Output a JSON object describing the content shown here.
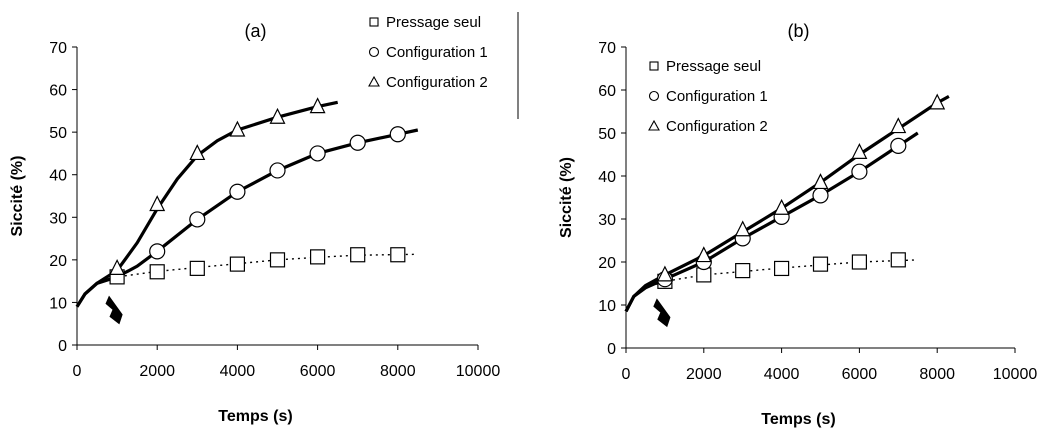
{
  "chart_data": [
    {
      "type": "scatter",
      "panel_label": "(a)",
      "xlabel": "Temps (s)",
      "ylabel": "Siccité (%)",
      "xlim": [
        0,
        10000
      ],
      "ylim": [
        0,
        70
      ],
      "x_ticks": [
        0,
        2000,
        4000,
        6000,
        8000,
        10000
      ],
      "y_ticks": [
        0,
        10,
        20,
        30,
        40,
        50,
        60,
        70
      ],
      "legend_position": "top-right",
      "series": [
        {
          "name": "Pressage seul",
          "marker": "square",
          "line": "dotted",
          "x": [
            1000,
            2000,
            3000,
            4000,
            5000,
            6000,
            7000,
            8000
          ],
          "y": [
            16,
            17.2,
            18,
            19,
            20,
            20.7,
            21.2,
            21.2
          ],
          "line_x": [
            0,
            200,
            500,
            1000,
            2000,
            3000,
            4000,
            5000,
            6000,
            7000,
            8500
          ],
          "line_y": [
            9,
            12,
            14.5,
            16,
            17.3,
            18.2,
            19.1,
            20,
            20.6,
            21.1,
            21.3
          ]
        },
        {
          "name": "Configuration 1",
          "marker": "circle",
          "line": "solid",
          "x": [
            2000,
            3000,
            4000,
            5000,
            6000,
            7000,
            8000
          ],
          "y": [
            22,
            29.5,
            36,
            41,
            45,
            47.5,
            49.5
          ],
          "line_x": [
            0,
            200,
            500,
            1000,
            1500,
            2000,
            3000,
            4000,
            5000,
            6000,
            7000,
            8000,
            8500
          ],
          "line_y": [
            9,
            12,
            14.5,
            16,
            18.5,
            22,
            29.5,
            36,
            41,
            45,
            47.5,
            49.5,
            50.5
          ]
        },
        {
          "name": "Configuration 2",
          "marker": "triangle",
          "line": "solid",
          "x": [
            1000,
            2000,
            3000,
            4000,
            5000,
            6000
          ],
          "y": [
            18,
            33,
            45,
            50.5,
            53.5,
            56
          ],
          "line_x": [
            0,
            200,
            500,
            1000,
            1500,
            2000,
            2500,
            3000,
            3500,
            4000,
            5000,
            6000,
            6500
          ],
          "line_y": [
            9,
            12,
            14.5,
            17.5,
            24,
            32,
            39,
            44.5,
            48,
            50.5,
            53.5,
            56,
            57
          ]
        }
      ]
    },
    {
      "type": "scatter",
      "panel_label": "(b)",
      "xlabel": "Temps (s)",
      "ylabel": "Siccité (%)",
      "xlim": [
        0,
        10000
      ],
      "ylim": [
        0,
        70
      ],
      "x_ticks": [
        0,
        2000,
        4000,
        6000,
        8000,
        10000
      ],
      "y_ticks": [
        0,
        10,
        20,
        30,
        40,
        50,
        60,
        70
      ],
      "legend_position": "top-left",
      "series": [
        {
          "name": "Pressage seul",
          "marker": "square",
          "line": "dotted",
          "x": [
            1000,
            2000,
            3000,
            4000,
            5000,
            6000,
            7000
          ],
          "y": [
            15.5,
            17,
            18,
            18.5,
            19.5,
            20,
            20.5
          ],
          "line_x": [
            0,
            200,
            500,
            1000,
            2000,
            3000,
            4000,
            5000,
            6000,
            7500
          ],
          "line_y": [
            8.5,
            12,
            14,
            15.5,
            17,
            17.8,
            18.6,
            19.3,
            20,
            20.5
          ]
        },
        {
          "name": "Configuration 1",
          "marker": "circle",
          "line": "solid",
          "x": [
            1000,
            2000,
            3000,
            4000,
            5000,
            6000,
            7000
          ],
          "y": [
            16,
            20,
            25.5,
            30.5,
            35.5,
            41,
            47
          ],
          "line_x": [
            0,
            200,
            500,
            1000,
            2000,
            3000,
            4000,
            5000,
            6000,
            7000,
            7500
          ],
          "line_y": [
            8.5,
            12,
            14,
            16,
            20,
            25.5,
            30.5,
            35.5,
            41,
            47,
            50
          ]
        },
        {
          "name": "Configuration 2",
          "marker": "triangle",
          "line": "solid",
          "x": [
            1000,
            2000,
            3000,
            4000,
            5000,
            6000,
            7000,
            8000
          ],
          "y": [
            17,
            21.5,
            27.5,
            32.5,
            38.5,
            45.5,
            51.5,
            57
          ],
          "line_x": [
            0,
            200,
            500,
            1000,
            2000,
            3000,
            4000,
            5000,
            6000,
            7000,
            8000,
            8300
          ],
          "line_y": [
            8.5,
            12,
            14.5,
            17,
            21.5,
            27,
            32.5,
            38.5,
            45,
            51,
            57,
            58.5
          ]
        }
      ]
    }
  ]
}
